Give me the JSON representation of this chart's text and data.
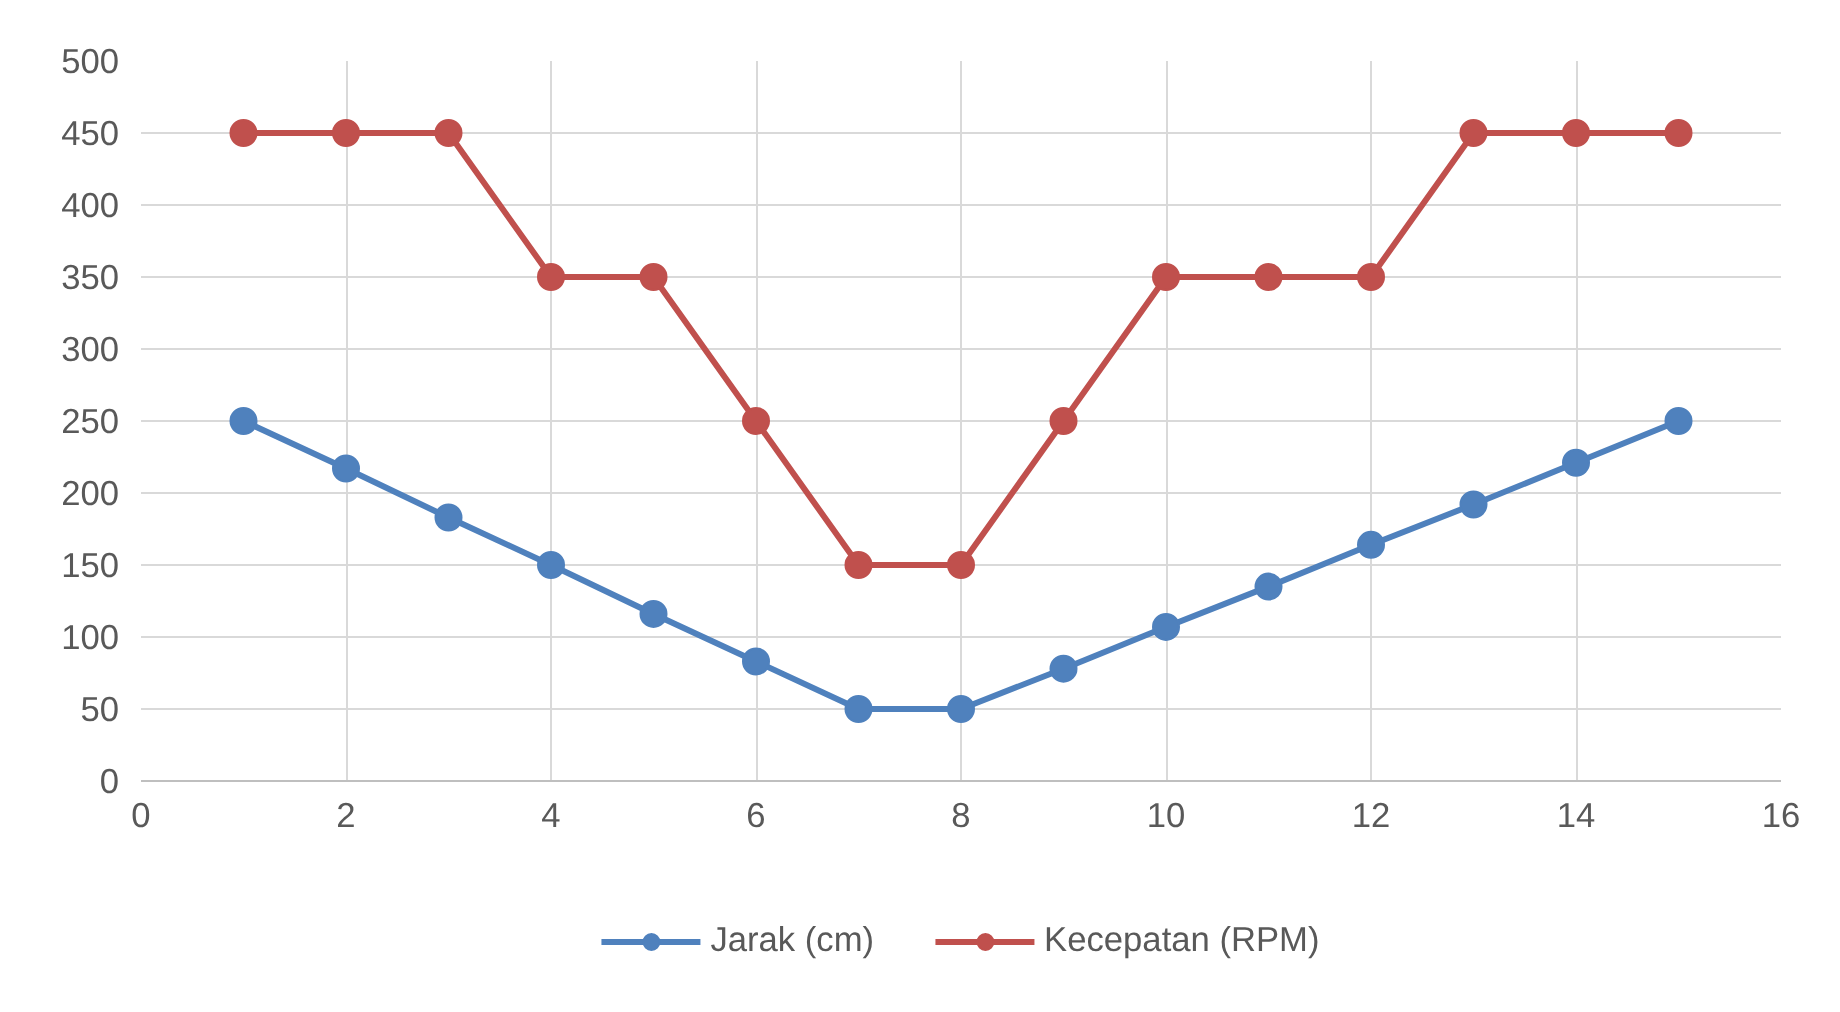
{
  "chart_data": {
    "type": "line",
    "x": [
      1,
      2,
      3,
      4,
      5,
      6,
      7,
      8,
      9,
      10,
      11,
      12,
      13,
      14,
      15
    ],
    "series": [
      {
        "name": "Jarak (cm)",
        "color": "#4f81bd",
        "values": [
          250,
          217,
          183,
          150,
          116,
          83,
          50,
          50,
          78,
          107,
          135,
          164,
          192,
          221,
          250
        ]
      },
      {
        "name": "Kecepatan (RPM)",
        "color": "#c0504d",
        "values": [
          450,
          450,
          450,
          350,
          350,
          250,
          150,
          150,
          250,
          350,
          350,
          350,
          450,
          450,
          450
        ]
      }
    ],
    "xlim": [
      0,
      16
    ],
    "xticks": [
      0,
      2,
      4,
      6,
      8,
      10,
      12,
      14,
      16
    ],
    "ylim": [
      0,
      500
    ],
    "yticks": [
      0,
      50,
      100,
      150,
      200,
      250,
      300,
      350,
      400,
      450,
      500
    ],
    "grid": true,
    "legend": "bottom",
    "marker": "circle",
    "line_style": "solid"
  }
}
